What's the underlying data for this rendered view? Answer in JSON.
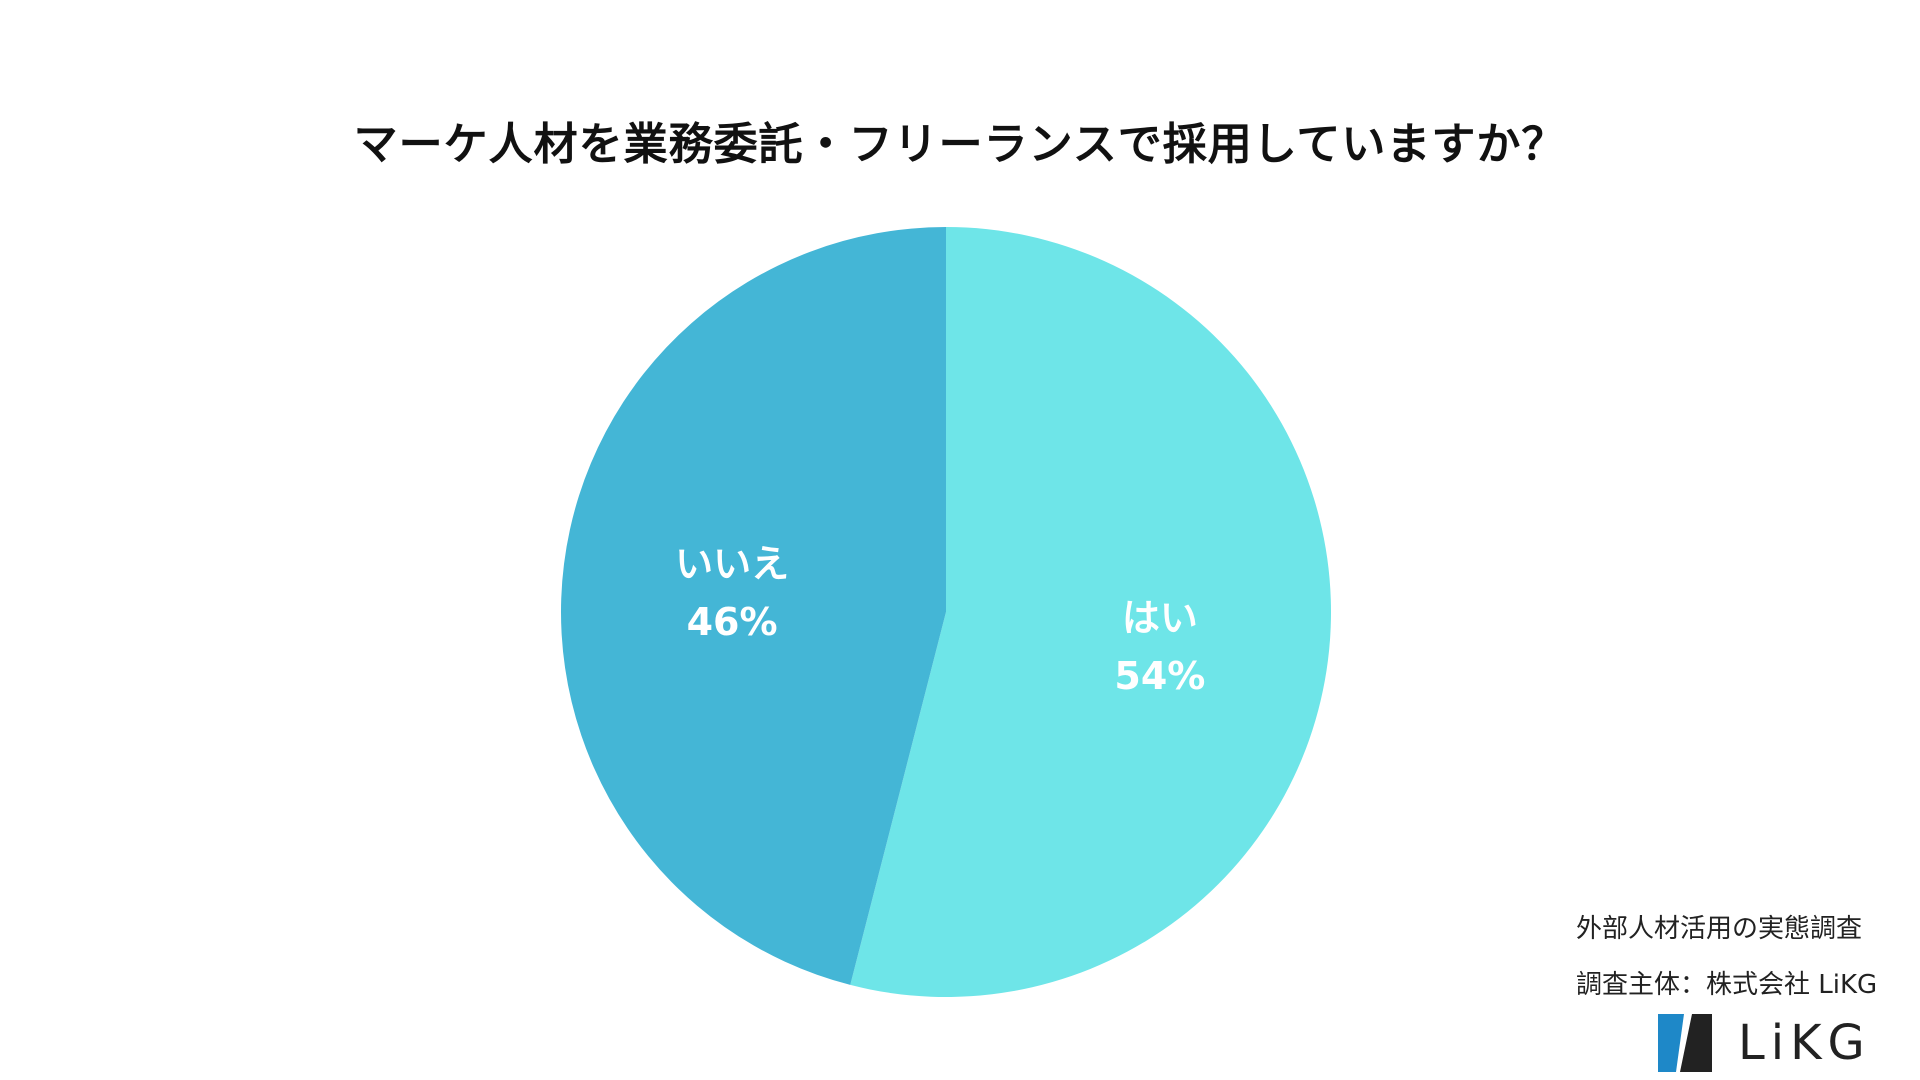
{
  "title": "マーケ人材を業務委託・フリーランスで採用していますか？",
  "chart_data": {
    "type": "pie",
    "title": "マーケ人材を業務委託・フリーランスで採用していますか？",
    "start": "12 o'clock, clockwise",
    "slices": [
      {
        "label": "はい",
        "value": 54,
        "value_label": "54%",
        "color": "#6ee5e8"
      },
      {
        "label": "いいえ",
        "value": 46,
        "value_label": "46%",
        "color": "#44b6d6"
      }
    ]
  },
  "footer": {
    "source_line1": "外部人材活用の実態調査",
    "source_line2": "調査主体：株式会社 LiKG",
    "logo_text": "LiKG",
    "logo_colors": {
      "accent": "#1e88c8",
      "dark": "#222222"
    }
  }
}
